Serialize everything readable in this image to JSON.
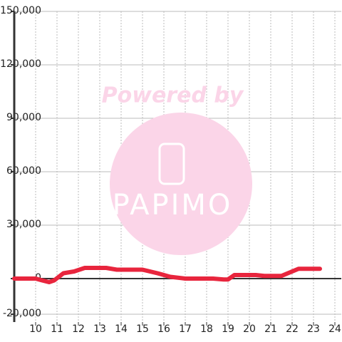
{
  "chart_data": {
    "type": "line",
    "x": [
      9.0,
      10.0,
      10.3,
      10.63,
      10.87,
      11.3,
      11.8,
      12.3,
      12.8,
      13.3,
      13.8,
      15.0,
      15.7,
      16.3,
      17.0,
      18.3,
      18.8,
      19.0,
      19.3,
      20.3,
      20.7,
      21.5,
      22.0,
      22.3,
      23.3
    ],
    "series": [
      {
        "color": "#e8253d",
        "values": [
          0,
          0,
          -1000,
          -2000,
          -1000,
          3000,
          4000,
          6000,
          6000,
          6000,
          5000,
          5000,
          3000,
          1000,
          0,
          0,
          -500,
          -500,
          2000,
          2000,
          1500,
          1500,
          4000,
          5500,
          5500
        ]
      }
    ],
    "xlim": [
      9,
      24.3
    ],
    "xticks": [
      10,
      11,
      12,
      13,
      14,
      15,
      16,
      17,
      18,
      19,
      20,
      21,
      22,
      23,
      24
    ],
    "ylim": [
      -24400,
      150000
    ],
    "yticks": [
      {
        "value": -20000,
        "label": "-20,000"
      },
      0,
      {
        "value": 30000,
        "label": "30,000"
      },
      {
        "value": 60000,
        "label": "60,000"
      },
      {
        "value": 90000,
        "label": "90,000"
      },
      {
        "value": 120000,
        "label": "120,000"
      },
      {
        "value": 150000,
        "label": "150,000"
      }
    ],
    "grid": true,
    "watermark": {
      "line1": "Powered by",
      "line2": "PAPIMO"
    }
  }
}
